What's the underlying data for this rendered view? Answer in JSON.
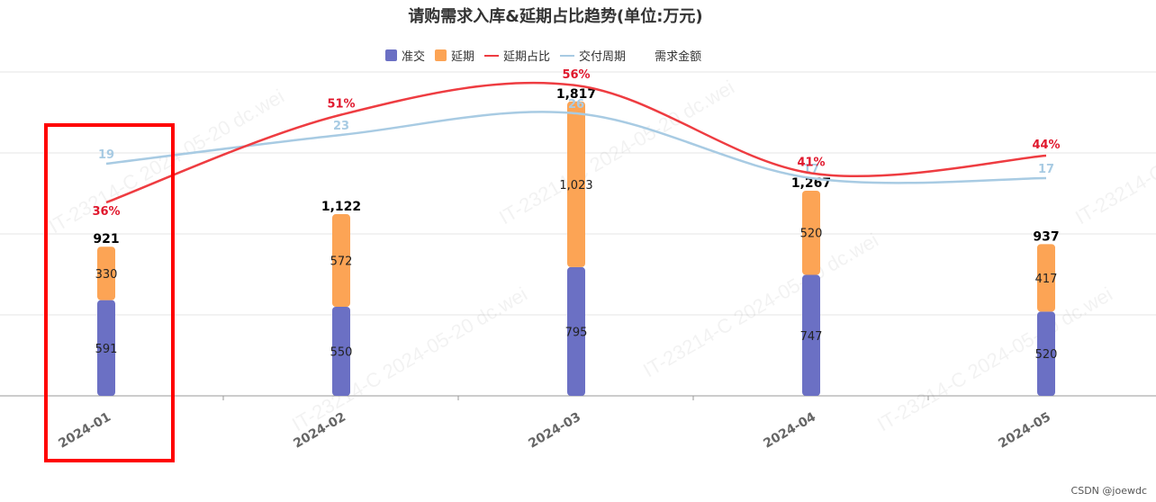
{
  "chart_data": {
    "type": "bar",
    "title": "请购需求入库&延期占比趋势(单位:万元)",
    "categories": [
      "2024-01",
      "2024-02",
      "2024-03",
      "2024-04",
      "2024-05"
    ],
    "series": [
      {
        "name": "准交",
        "kind": "bar-stack",
        "color": "#6b70c4",
        "values": [
          591,
          550,
          795,
          747,
          520
        ],
        "labels": [
          "591",
          "550",
          "795",
          "747",
          "520"
        ]
      },
      {
        "name": "延期",
        "kind": "bar-stack",
        "color": "#fca455",
        "values": [
          330,
          572,
          1023,
          520,
          417
        ],
        "labels": [
          "330",
          "572",
          "1,023",
          "520",
          "417"
        ]
      },
      {
        "name": "延期占比",
        "kind": "line",
        "color": "#ee3c41",
        "values": [
          36,
          51,
          56,
          41,
          44
        ],
        "labels": [
          "36%",
          "51%",
          "56%",
          "41%",
          "44%"
        ]
      },
      {
        "name": "交付周期",
        "kind": "line",
        "color": "#a8cbe3",
        "values": [
          19,
          23,
          26,
          17,
          17
        ],
        "labels": [
          "19",
          "23",
          "26",
          "17",
          "17"
        ]
      },
      {
        "name": "需求金额",
        "kind": "total",
        "color": "#000000",
        "values": [
          921,
          1122,
          1817,
          1267,
          937
        ],
        "labels": [
          "921",
          "1,122",
          "1,817",
          "1,267",
          "937"
        ]
      }
    ],
    "grid": true,
    "legend_position": "top"
  },
  "watermark": "IT-23214-C 2024-05-20 dc.wei",
  "credit": "CSDN @joewdc"
}
